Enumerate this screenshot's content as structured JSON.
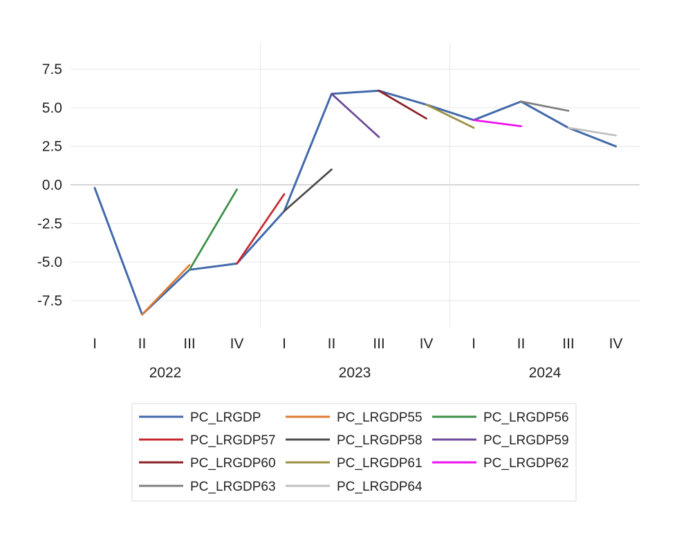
{
  "chart_data": {
    "type": "line",
    "title": "",
    "xlabel": "",
    "ylabel": "",
    "ylim": [
      -9,
      9
    ],
    "yticks": [
      "7.5",
      "5.0",
      "2.5",
      "0.0",
      "-2.5",
      "-5.0",
      "-7.5"
    ],
    "ytick_values": [
      7.5,
      5.0,
      2.5,
      0.0,
      -2.5,
      -5.0,
      -7.5
    ],
    "quarters": [
      "I",
      "II",
      "III",
      "IV",
      "I",
      "II",
      "III",
      "IV",
      "I",
      "II",
      "III",
      "IV"
    ],
    "years": [
      "2022",
      "2023",
      "2024"
    ],
    "grid": true,
    "legend_position": "bottom",
    "series": [
      {
        "name": "PC_LRGDP",
        "color": "#4169aa",
        "points": [
          [
            0,
            -0.2
          ],
          [
            1,
            -8.4
          ],
          [
            2,
            -5.5
          ],
          [
            3,
            -5.1
          ],
          [
            4,
            -1.7
          ],
          [
            5,
            5.9
          ],
          [
            6,
            6.1
          ],
          [
            7,
            5.2
          ],
          [
            8,
            4.2
          ],
          [
            9,
            5.4
          ],
          [
            10,
            3.7
          ],
          [
            11,
            2.5
          ]
        ]
      },
      {
        "name": "PC_LRGDP55",
        "color": "#e07b30",
        "points": [
          [
            1,
            -8.4
          ],
          [
            2,
            -5.2
          ]
        ]
      },
      {
        "name": "PC_LRGDP56",
        "color": "#3d8f48",
        "points": [
          [
            2,
            -5.5
          ],
          [
            3,
            -0.3
          ]
        ]
      },
      {
        "name": "PC_LRGDP57",
        "color": "#c8282f",
        "points": [
          [
            3,
            -5.1
          ],
          [
            4,
            -0.6
          ]
        ]
      },
      {
        "name": "PC_LRGDP58",
        "color": "#4b4b4b",
        "points": [
          [
            4,
            -1.7
          ],
          [
            5,
            1.0
          ]
        ]
      },
      {
        "name": "PC_LRGDP59",
        "color": "#6d4a9a",
        "points": [
          [
            5,
            5.9
          ],
          [
            6,
            3.1
          ]
        ]
      },
      {
        "name": "PC_LRGDP60",
        "color": "#8b1e24",
        "points": [
          [
            6,
            6.1
          ],
          [
            7,
            4.3
          ]
        ]
      },
      {
        "name": "PC_LRGDP61",
        "color": "#9a9040",
        "points": [
          [
            7,
            5.2
          ],
          [
            8,
            3.7
          ]
        ]
      },
      {
        "name": "PC_LRGDP62",
        "color": "#ee10ee",
        "points": [
          [
            8,
            4.2
          ],
          [
            9,
            3.8
          ]
        ]
      },
      {
        "name": "PC_LRGDP63",
        "color": "#7f7f7f",
        "points": [
          [
            9,
            5.4
          ],
          [
            10,
            4.8
          ]
        ]
      },
      {
        "name": "PC_LRGDP64",
        "color": "#bfbfbf",
        "points": [
          [
            10,
            3.7
          ],
          [
            11,
            3.2
          ]
        ]
      }
    ]
  }
}
